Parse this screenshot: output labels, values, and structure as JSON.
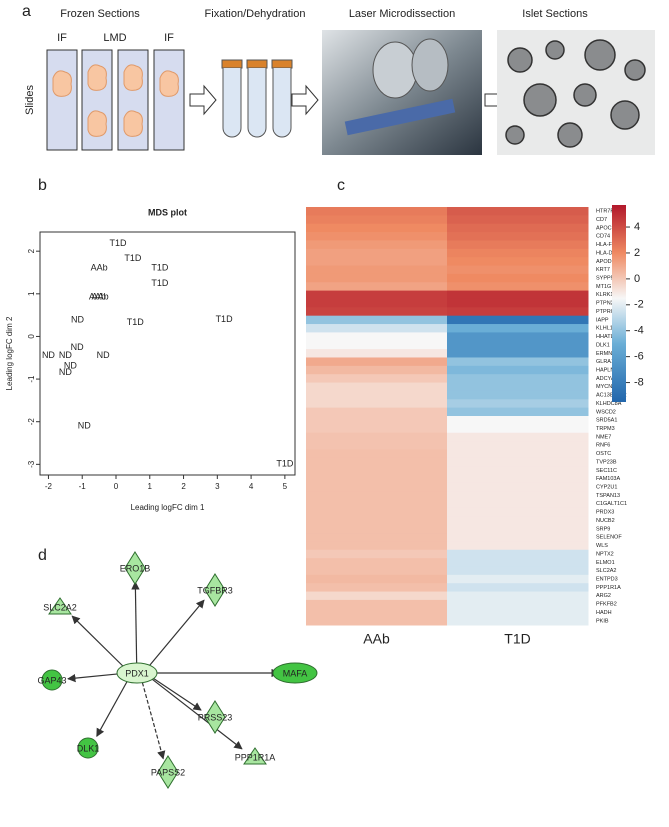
{
  "panel_labels": [
    "a",
    "b",
    "c",
    "d"
  ],
  "workflow": {
    "steps": [
      "Frozen Sections",
      "Fixation/Dehydration",
      "Laser Microdissection",
      "Islet Sections"
    ],
    "slides_label": "Slides",
    "slide_labels": [
      "IF",
      "LMD",
      "IF"
    ]
  },
  "chart_data": [
    {
      "type": "scatter",
      "title": "MDS plot",
      "xlabel": "Leading logFC dim 1",
      "ylabel": "Leading logFC dim 2",
      "xlim": [
        -2.25,
        5.3
      ],
      "ylim": [
        -3.25,
        2.45
      ],
      "xticks": [
        -2,
        -1,
        0,
        1,
        2,
        3,
        4,
        5
      ],
      "yticks": [
        -3,
        -2,
        -1,
        0,
        1,
        2
      ],
      "series": [
        {
          "name": "ND",
          "color": "#2f3f8f",
          "x": [
            -1.14,
            -1.15,
            -2.0,
            -1.5,
            -1.35,
            -1.5,
            -0.38,
            -0.94
          ],
          "y": [
            0.38,
            -0.26,
            -0.45,
            -0.45,
            -0.7,
            -0.85,
            -0.45,
            -2.1
          ]
        },
        {
          "name": "AAb",
          "color": "#a3201d",
          "x": [
            -0.5,
            -0.55,
            -0.47
          ],
          "y": [
            1.6,
            0.92,
            0.92
          ]
        },
        {
          "name": "T1D",
          "color": "#2e8b2e",
          "x": [
            0.06,
            0.5,
            1.3,
            1.3,
            0.57,
            3.2,
            5.0
          ],
          "y": [
            2.18,
            1.83,
            1.6,
            1.24,
            0.33,
            0.4,
            -3.0
          ]
        }
      ]
    },
    {
      "type": "heatmap",
      "rows": [
        "HTR7P1",
        "CD7",
        "APOC1",
        "CD74",
        "HLA-F",
        "HLA-DRA",
        "APOD",
        "KRT7",
        "SYPP5",
        "MT1G",
        "KLRK1",
        "PTPN22",
        "PTPRQ",
        "IAPP",
        "KLHL1",
        "HHATL",
        "DLK1",
        "ERMN",
        "GLRA1",
        "HAPLN4",
        "ADCYAP1",
        "MYCN",
        "AC138430.2",
        "KLHDC8A",
        "WSCD2",
        "SRD5A1",
        "TRPM3",
        "NME7",
        "RNF6",
        "OSTC",
        "TVP23B",
        "SEC11C",
        "FAM103A",
        "CYP2U1",
        "TSPAN13",
        "C1GALT1C1",
        "PRDX3",
        "NUCB2",
        "SRP9",
        "SELENOF",
        "WLS",
        "NPTX2",
        "ELMO1",
        "SLC2A2",
        "ENTPD3",
        "PPP1R1A",
        "ARG2",
        "PFKFB2",
        "HADH",
        "PKIB"
      ],
      "series": [
        {
          "name": "AAb",
          "values": [
            2.5,
            2.3,
            2.0,
            1.8,
            1.5,
            1.3,
            1.3,
            1.5,
            1.5,
            1.2,
            4.5,
            4.5,
            4.3,
            -4,
            -2.5,
            -1.5,
            -1.5,
            -1,
            1,
            0.5,
            0,
            -0.5,
            -0.5,
            -0.5,
            0,
            0,
            0,
            0.2,
            0.2,
            0.3,
            0.3,
            0.3,
            0.3,
            0.3,
            0.3,
            0.3,
            0.3,
            0.3,
            0.3,
            0.3,
            0.3,
            0,
            0.3,
            0.3,
            0.5,
            0.3,
            -0.5,
            0.3,
            0.3,
            0.3
          ]
        },
        {
          "name": "T1D",
          "values": [
            3.5,
            3.3,
            3.0,
            2.8,
            2.5,
            2.2,
            2.0,
            1.8,
            2.0,
            1.8,
            4.8,
            4.8,
            4.5,
            -8.5,
            -5,
            -6.5,
            -6.5,
            -6.5,
            -4,
            -4.5,
            -4,
            -4,
            -4,
            -3.5,
            -4,
            -1.5,
            -1.5,
            -1,
            -1,
            -1,
            -1,
            -1,
            -1,
            -1,
            -1,
            -1,
            -1,
            -1,
            -1,
            -1,
            -1,
            -2.5,
            -2.5,
            -2.5,
            -2,
            -2.5,
            -2,
            -2,
            -2,
            -2
          ]
        }
      ],
      "zlim": [
        -9.5,
        5.7
      ],
      "zticks": [
        -8,
        -6,
        -4,
        -2,
        0,
        2,
        4
      ],
      "colorscale": [
        [
          -9.5,
          "#2166ac"
        ],
        [
          -5,
          "#6aaed6"
        ],
        [
          -1.5,
          "#f7f7f7"
        ],
        [
          2,
          "#ef8a62"
        ],
        [
          5.7,
          "#b2182b"
        ]
      ]
    }
  ],
  "network": {
    "nodes": [
      "PDX1",
      "SLC2A2",
      "ERO1B",
      "TGFBR3",
      "GAP43",
      "MAFA",
      "PRSS23",
      "DLK1",
      "PAPSS2",
      "PPP1R1A"
    ]
  }
}
